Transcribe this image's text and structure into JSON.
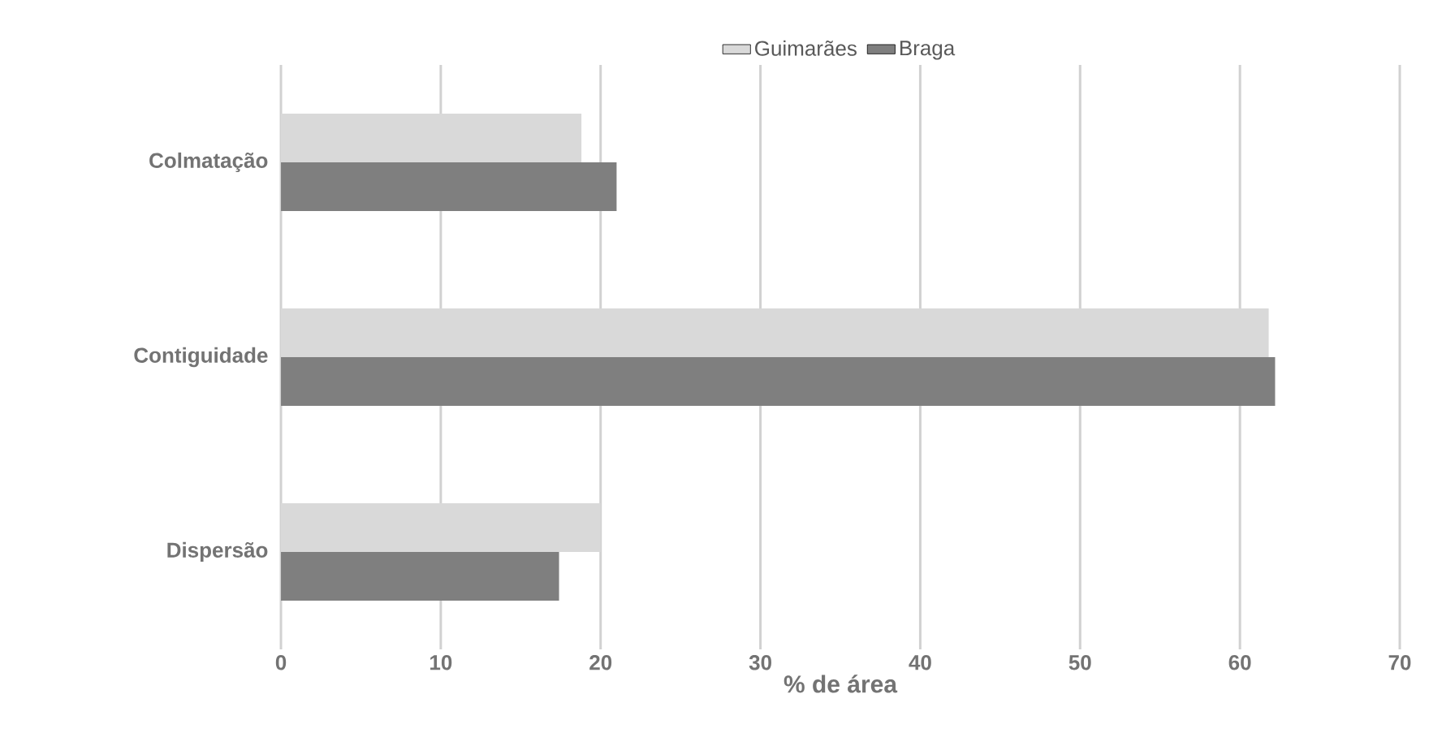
{
  "chart_data": {
    "type": "bar",
    "orientation": "horizontal",
    "xlabel": "% de área",
    "categories": [
      "Colmatação",
      "Contiguidade",
      "Dispersão"
    ],
    "series": [
      {
        "name": "Guimarães",
        "color": "#d9d9d9",
        "values": [
          18.8,
          61.8,
          20.0
        ]
      },
      {
        "name": "Braga",
        "color": "#7f7f7f",
        "values": [
          21.0,
          62.2,
          17.4
        ]
      }
    ],
    "xlim": [
      0,
      70
    ],
    "xticks": [
      0,
      10,
      20,
      30,
      40,
      50,
      60,
      70
    ],
    "grid": "x",
    "legend": "top"
  }
}
